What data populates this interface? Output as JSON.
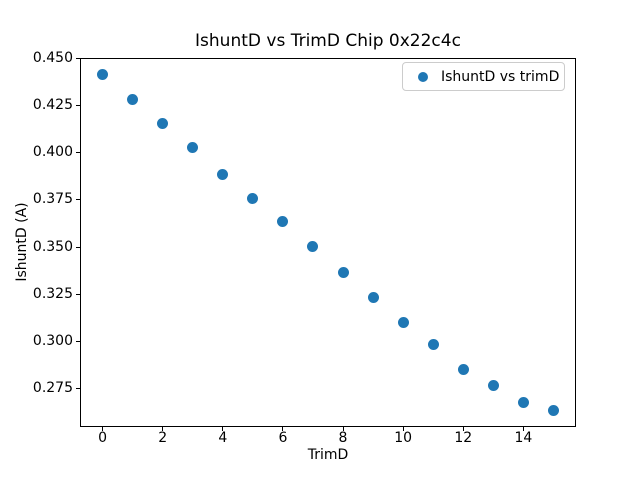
{
  "chart_data": {
    "type": "scatter",
    "title": "IshuntD vs TrimD Chip 0x22c4c",
    "xlabel": "TrimD",
    "ylabel": "IshuntD (A)",
    "legend": {
      "label": "IshuntD vs trimD",
      "position": "upper right"
    },
    "marker_color": "#1f77b4",
    "x": [
      0,
      1,
      2,
      3,
      4,
      5,
      6,
      7,
      8,
      9,
      10,
      11,
      12,
      13,
      14,
      15
    ],
    "y": [
      0.4415,
      0.428,
      0.4155,
      0.403,
      0.3885,
      0.376,
      0.3635,
      0.3505,
      0.3365,
      0.3235,
      0.31,
      0.2985,
      0.285,
      0.2765,
      0.2675,
      0.2635
    ],
    "xlim": [
      -0.75,
      15.75
    ],
    "ylim": [
      0.2546,
      0.4504
    ],
    "xticks": [
      0,
      2,
      4,
      6,
      8,
      10,
      12,
      14
    ],
    "xtick_labels": [
      "0",
      "2",
      "4",
      "6",
      "8",
      "10",
      "12",
      "14"
    ],
    "yticks": [
      0.45,
      0.425,
      0.4,
      0.375,
      0.35,
      0.325,
      0.3,
      0.275
    ],
    "ytick_labels": [
      "0.450",
      "0.425",
      "0.400",
      "0.375",
      "0.350",
      "0.325",
      "0.300",
      "0.275"
    ],
    "grid": false,
    "spine_color": "#000000",
    "background": "#ffffff"
  }
}
